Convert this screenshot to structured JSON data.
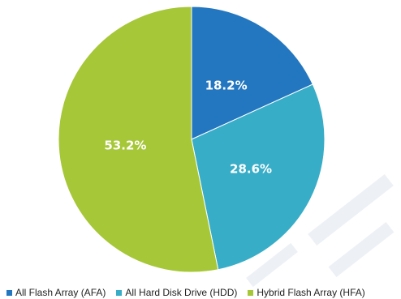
{
  "chart_data": {
    "type": "pie",
    "title": "",
    "categories": [
      "All Flash Array (AFA)",
      "All Hard Disk Drive (HDD)",
      "Hybrid Flash Array (HFA)"
    ],
    "values": [
      18.2,
      28.6,
      53.2
    ],
    "labels": [
      "18.2%",
      "28.6%",
      "53.2%"
    ],
    "colors": [
      "#2377c0",
      "#37adc7",
      "#a6c737"
    ],
    "start_angle": "12 o'clock",
    "direction": "clockwise",
    "legend": "bottom",
    "label_color": "#ffffff"
  }
}
